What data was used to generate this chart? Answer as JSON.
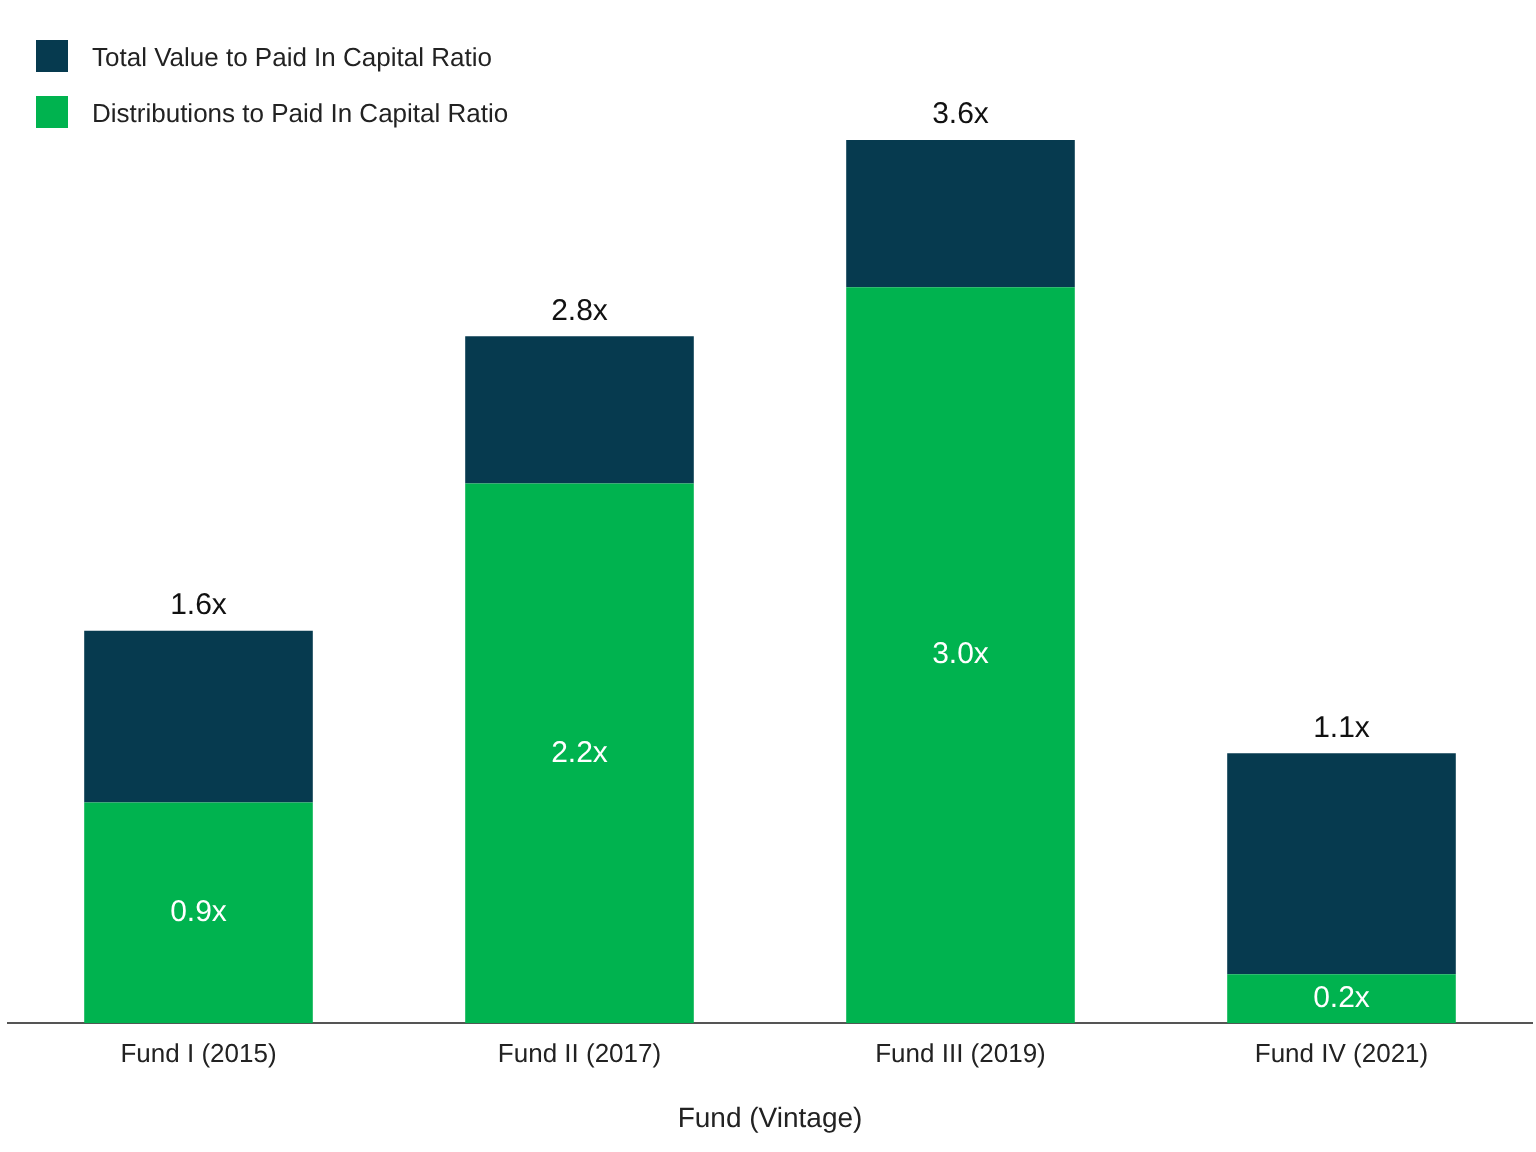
{
  "chart_data": {
    "type": "bar",
    "xlabel": "Fund (Vintage)",
    "categories": [
      "Fund I (2015)",
      "Fund II (2017)",
      "Fund III (2019)",
      "Fund IV (2021)"
    ],
    "stacked": true,
    "grid": false,
    "legend": "top left",
    "tick_labels": "x",
    "series": [
      {
        "name": "Distributions to Paid In Capital Ratio",
        "color": "#00b34f",
        "values": [
          0.9,
          2.2,
          3.0,
          0.2
        ],
        "value_labels": [
          "0.9x",
          "2.2x",
          "3.0x",
          "0.2x"
        ]
      },
      {
        "name": "Total Value to Paid In Capital Ratio",
        "color": "#063a4f",
        "values": [
          0.7,
          0.6,
          0.6,
          0.9
        ]
      }
    ],
    "totals": [
      "1.6x",
      "2.8x",
      "3.6x",
      "1.1x"
    ]
  }
}
